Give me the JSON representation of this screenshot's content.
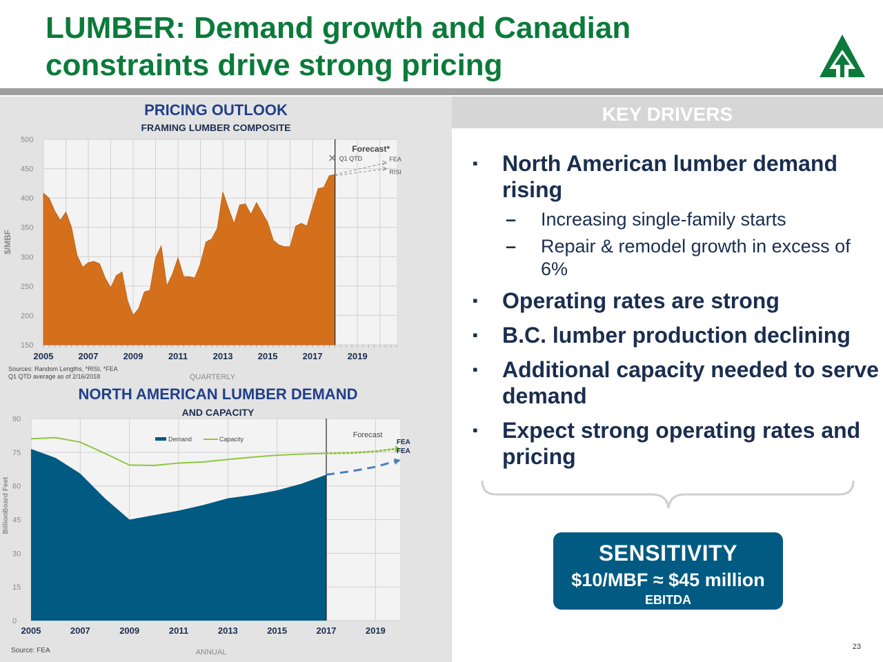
{
  "title": {
    "line1": "LUMBER: Demand growth and Canadian",
    "line2": "constraints drive strong pricing"
  },
  "colors": {
    "title_green": "#0b7a3a",
    "navy": "#1a2e4f",
    "orange": "#d4701c",
    "demand_blue": "#005a82",
    "capacity_green": "#8dc63f",
    "forecast_blue": "#4a7fc1"
  },
  "key_drivers": {
    "header": "KEY DRIVERS",
    "bullets": [
      {
        "text": "North American lumber demand rising",
        "subs": [
          "Increasing single-family starts",
          "Repair & remodel growth in excess of 6%"
        ]
      },
      {
        "text": "Operating rates are strong",
        "subs": []
      },
      {
        "text": "B.C. lumber production declining",
        "subs": []
      },
      {
        "text": "Additional capacity needed to serve demand",
        "subs": []
      },
      {
        "text": "Expect strong operating rates and pricing",
        "subs": []
      }
    ],
    "bullet_marker": "▪",
    "sub_marker": "–"
  },
  "sensitivity": {
    "title": "SENSITIVITY",
    "value": "$10/MBF ≈ $45 million",
    "sub": "EBITDA"
  },
  "page_number": "23",
  "chart_data": [
    {
      "type": "area",
      "title": "PRICING OUTLOOK",
      "subtitle": "FRAMING LUMBER COMPOSITE",
      "ylabel": "$/MBF",
      "xlabel": "QUARTERLY",
      "ylim": [
        150,
        500
      ],
      "xlim": [
        2005,
        2020.75
      ],
      "yticks": [
        150,
        200,
        250,
        300,
        350,
        400,
        450,
        500
      ],
      "xticks": [
        2005,
        2007,
        2009,
        2011,
        2013,
        2015,
        2017,
        2019
      ],
      "grid": true,
      "forecast_label": "Forecast*",
      "forecast_start": 2018.0,
      "q1_label": "Q1 QTD",
      "source": "Sources: Random Lengths, *RISI, *FEA",
      "note": "Q1 QTD average as of 2/16/2018",
      "series": [
        {
          "name": "",
          "x": [
            2005,
            2005.25,
            2005.5,
            2005.75,
            2006,
            2006.25,
            2006.5,
            2006.75,
            2007,
            2007.25,
            2007.5,
            2007.75,
            2008,
            2008.25,
            2008.5,
            2008.75,
            2009,
            2009.25,
            2009.5,
            2009.75,
            2010,
            2010.25,
            2010.5,
            2010.75,
            2011,
            2011.25,
            2011.5,
            2011.75,
            2012,
            2012.25,
            2012.5,
            2012.75,
            2013,
            2013.25,
            2013.5,
            2013.75,
            2014,
            2014.25,
            2014.5,
            2014.75,
            2015,
            2015.25,
            2015.5,
            2015.75,
            2016,
            2016.25,
            2016.5,
            2016.75,
            2017,
            2017.25,
            2017.5,
            2017.75,
            2018
          ],
          "y": [
            408,
            400,
            378,
            362,
            376,
            350,
            302,
            282,
            290,
            292,
            288,
            264,
            247,
            268,
            274,
            225,
            200,
            212,
            240,
            243,
            298,
            318,
            250,
            270,
            298,
            266,
            266,
            264,
            288,
            325,
            330,
            348,
            410,
            382,
            356,
            388,
            390,
            372,
            392,
            375,
            358,
            328,
            320,
            317,
            317,
            352,
            357,
            352,
            385,
            416,
            418,
            438,
            440
          ]
        },
        {
          "name": "FEA",
          "x": [
            2018,
            2020.3
          ],
          "y": [
            440,
            460
          ],
          "style": "dashed"
        },
        {
          "name": "RISI",
          "x": [
            2018,
            2020.3
          ],
          "y": [
            438,
            450
          ],
          "style": "dashed"
        }
      ]
    },
    {
      "type": "area",
      "title": "NORTH AMERICAN LUMBER DEMAND",
      "subtitle": "AND CAPACITY",
      "ylabel": "BillionBoard Feet",
      "xlabel": "ANNUAL",
      "ylim": [
        0,
        90
      ],
      "xlim": [
        2005,
        2020
      ],
      "yticks": [
        0,
        15,
        30,
        45,
        60,
        75,
        90
      ],
      "xticks": [
        2005,
        2007,
        2009,
        2011,
        2013,
        2015,
        2017,
        2019
      ],
      "grid": true,
      "forecast_label": "Forecast",
      "forecast_start": 2017.0,
      "source": "Source: FEA",
      "legend": [
        "Demand",
        "Capacity"
      ],
      "series": [
        {
          "name": "Demand",
          "x": [
            2005,
            2006,
            2007,
            2008,
            2009,
            2010,
            2011,
            2012,
            2013,
            2014,
            2015,
            2016,
            2017
          ],
          "y": [
            76.5,
            72.5,
            65.5,
            54.5,
            45,
            47,
            49,
            51.5,
            54.5,
            56,
            58,
            61,
            65
          ]
        },
        {
          "name": "Capacity",
          "x": [
            2005,
            2006,
            2007,
            2008,
            2009,
            2010,
            2011,
            2012,
            2013,
            2014,
            2015,
            2016,
            2017
          ],
          "y": [
            81,
            81.5,
            79.5,
            74.5,
            69.3,
            69.1,
            70.2,
            70.7,
            71.8,
            72.8,
            73.7,
            74.2,
            74.5
          ]
        },
        {
          "name": "FEA",
          "x": [
            2017,
            2018,
            2019,
            2019.8
          ],
          "y": [
            74.5,
            74.7,
            75.4,
            76.5
          ],
          "style": "dotted-forecast-capacity"
        },
        {
          "name": "FEA",
          "x": [
            2017,
            2018,
            2019,
            2019.8
          ],
          "y": [
            65,
            66.5,
            68.5,
            71
          ],
          "style": "dashed-forecast-demand"
        }
      ]
    }
  ]
}
